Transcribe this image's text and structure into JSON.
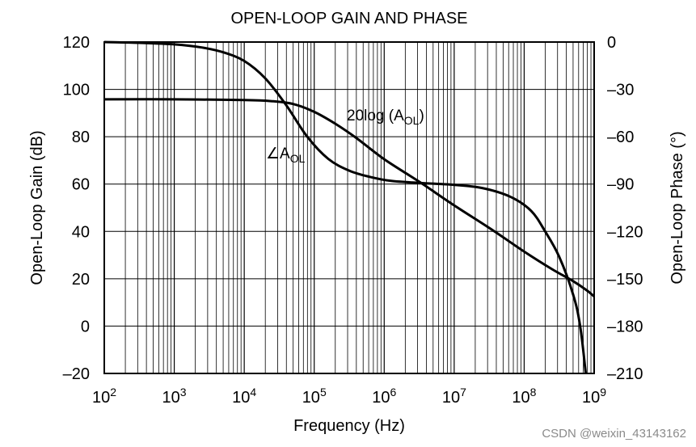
{
  "chart_data": {
    "type": "line",
    "title": "OPEN-LOOP GAIN AND PHASE",
    "xlabel": "Frequency (Hz)",
    "ylabel": "Open-Loop Gain (dB)",
    "y2label": "Open-Loop Phase (°)",
    "xscale": "log",
    "x_exponents": [
      2,
      3,
      4,
      5,
      6,
      7,
      8,
      9
    ],
    "x_tick_base": "10",
    "ylim": [
      -20,
      120
    ],
    "y_ticks": [
      "120",
      "100",
      "80",
      "60",
      "40",
      "20",
      "0",
      "–20"
    ],
    "y2lim": [
      -210,
      0
    ],
    "y2_ticks": [
      "0",
      "–30",
      "–60",
      "–90",
      "–120",
      "–150",
      "–180",
      "–210"
    ],
    "series": [
      {
        "name": "gain",
        "axis": "left",
        "label_main": "20log (A",
        "label_sub": "OL",
        "label_end": ")",
        "points": [
          [
            2,
            95.8
          ],
          [
            3,
            95.8
          ],
          [
            4,
            95.5
          ],
          [
            4.4,
            95
          ],
          [
            4.7,
            93.8
          ],
          [
            5.0,
            90.5
          ],
          [
            5.3,
            85.5
          ],
          [
            5.6,
            79.5
          ],
          [
            6.0,
            70.5
          ],
          [
            6.5,
            61
          ],
          [
            7.0,
            51
          ],
          [
            7.5,
            41.5
          ],
          [
            8.0,
            31.5
          ],
          [
            8.4,
            24
          ],
          [
            8.7,
            19
          ],
          [
            8.9,
            15
          ],
          [
            9.0,
            12.5
          ]
        ]
      },
      {
        "name": "phase",
        "axis": "right",
        "label_prefix": "∠A",
        "label_sub": "OL",
        "points": [
          [
            2,
            0
          ],
          [
            2.5,
            -0.5
          ],
          [
            3,
            -1.5
          ],
          [
            3.4,
            -3.5
          ],
          [
            3.7,
            -6.5
          ],
          [
            4.0,
            -12
          ],
          [
            4.3,
            -23
          ],
          [
            4.6,
            -40
          ],
          [
            4.9,
            -60
          ],
          [
            5.2,
            -74
          ],
          [
            5.5,
            -81.5
          ],
          [
            5.8,
            -85.5
          ],
          [
            6.1,
            -88
          ],
          [
            6.5,
            -89.3
          ],
          [
            7.0,
            -90.5
          ],
          [
            7.4,
            -92.5
          ],
          [
            7.8,
            -98
          ],
          [
            8.1,
            -107
          ],
          [
            8.3,
            -120
          ],
          [
            8.5,
            -136
          ],
          [
            8.7,
            -160
          ],
          [
            8.8,
            -180
          ],
          [
            8.88,
            -210
          ]
        ]
      }
    ]
  },
  "watermark": "CSDN @weixin_43143162"
}
